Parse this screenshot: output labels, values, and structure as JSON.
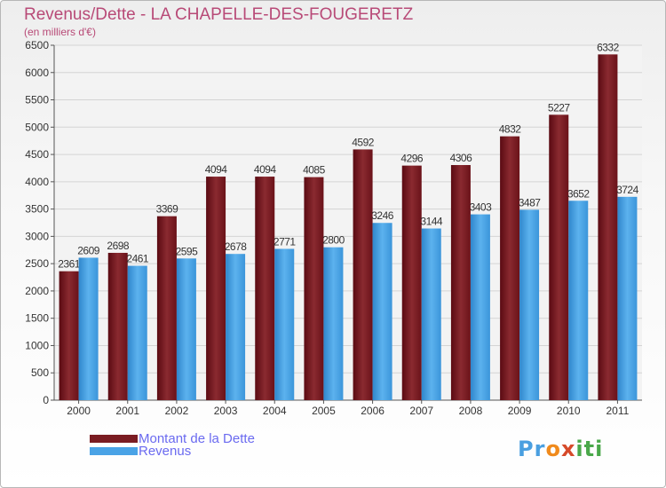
{
  "header": {
    "title": "Revenus/Dette - LA CHAPELLE-DES-FOUGERETZ",
    "subtitle": "(en milliers d'€)"
  },
  "chart_data": {
    "type": "bar",
    "categories": [
      "2000",
      "2001",
      "2002",
      "2003",
      "2004",
      "2005",
      "2006",
      "2007",
      "2008",
      "2009",
      "2010",
      "2011"
    ],
    "series": [
      {
        "name": "Montant de la Dette",
        "color": "#7a1c22",
        "values": [
          2361,
          2698,
          3369,
          4094,
          4094,
          4085,
          4592,
          4296,
          4306,
          4832,
          5227,
          6332
        ]
      },
      {
        "name": "Revenus",
        "color": "#4aa3e6",
        "values": [
          2609,
          2461,
          2595,
          2678,
          2771,
          2800,
          3246,
          3144,
          3403,
          3487,
          3652,
          3724
        ]
      }
    ],
    "ylim": [
      0,
      6500
    ],
    "yticks": [
      0,
      500,
      1000,
      1500,
      2000,
      2500,
      3000,
      3500,
      4000,
      4500,
      5000,
      5500,
      6000,
      6500
    ],
    "grid": true,
    "legend_position": "bottom-left"
  },
  "legend": {
    "items": [
      {
        "label": "Montant de la Dette",
        "color": "#7a1c22"
      },
      {
        "label": "Revenus",
        "color": "#4aa3e6"
      }
    ]
  },
  "logo": {
    "letters": [
      {
        "ch": "P",
        "color": "#4a9fe0"
      },
      {
        "ch": "r",
        "color": "#4a9fe0"
      },
      {
        "ch": "o",
        "color": "#f08a1c"
      },
      {
        "ch": "x",
        "color": "#d64a2a"
      },
      {
        "ch": "i",
        "color": "#4aa84a"
      },
      {
        "ch": "t",
        "color": "#4aa84a"
      },
      {
        "ch": "i",
        "color": "#4aa84a"
      }
    ]
  }
}
